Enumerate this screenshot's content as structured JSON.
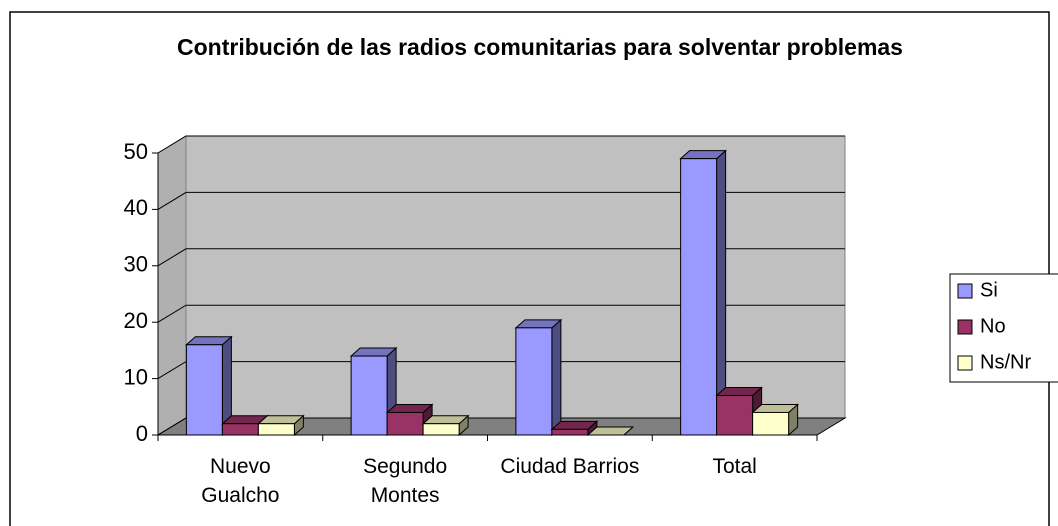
{
  "chart_data": {
    "type": "bar3d",
    "title": "Contribución de las radios comunitarias para solventar problemas",
    "categories": [
      "Nuevo Gualcho",
      "Segundo Montes",
      "Ciudad Barrios",
      "Total"
    ],
    "series": [
      {
        "name": "Si",
        "color": "#9999ff",
        "values": [
          16,
          14,
          19,
          49
        ]
      },
      {
        "name": "No",
        "color": "#993366",
        "values": [
          2,
          4,
          1,
          7
        ]
      },
      {
        "name": "Ns/Nr",
        "color": "#ffffcc",
        "values": [
          2,
          2,
          0,
          4
        ]
      }
    ],
    "ylim": [
      0,
      50
    ],
    "yticks": [
      0,
      10,
      20,
      30,
      40,
      50
    ],
    "grid": true,
    "legend": "right"
  }
}
